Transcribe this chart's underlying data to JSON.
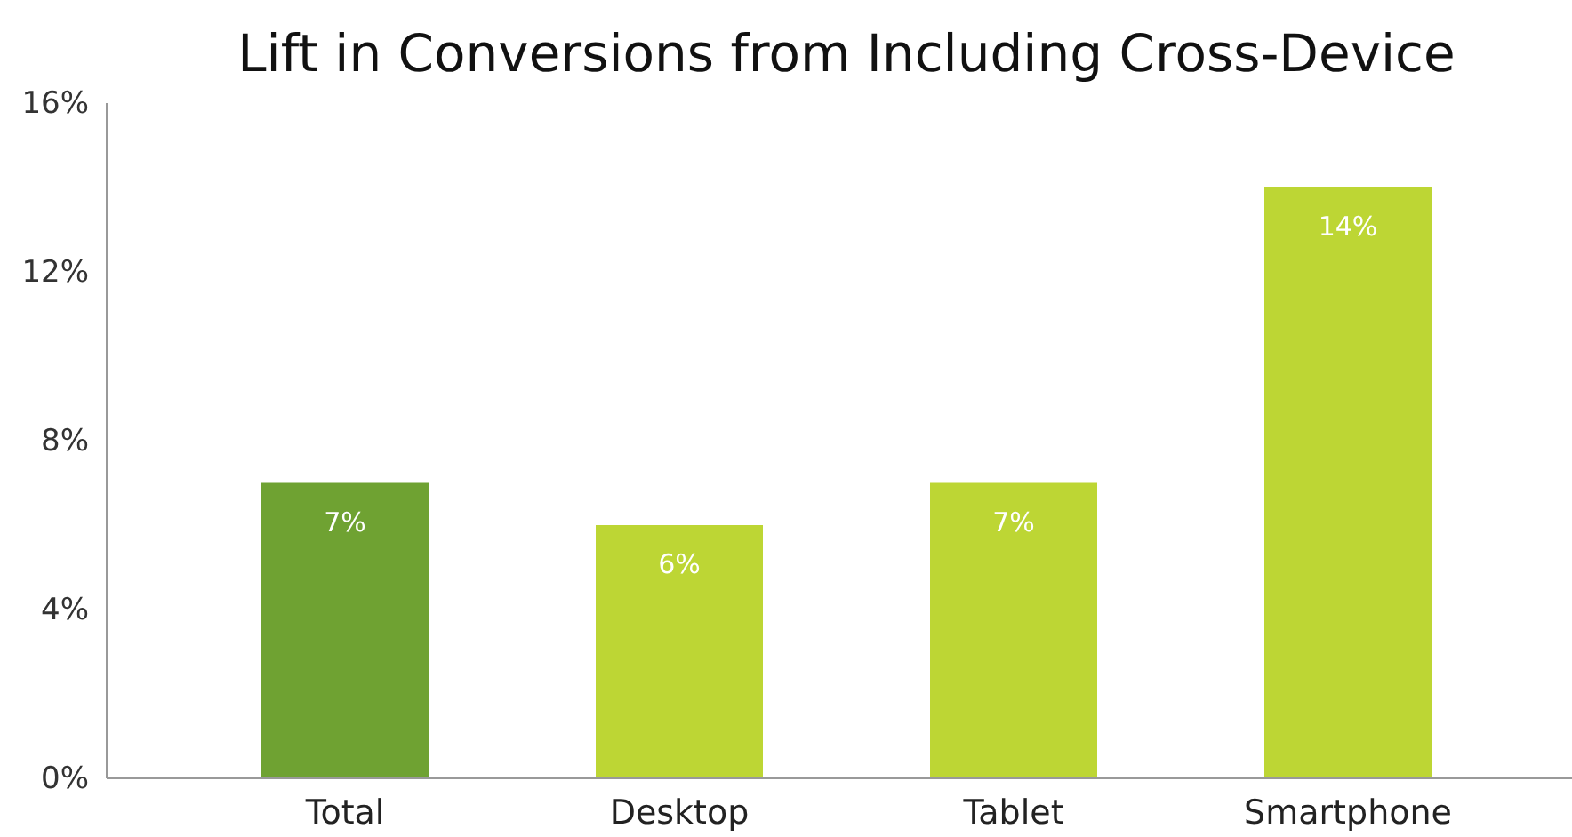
{
  "chart_data": {
    "type": "bar",
    "title": "Lift in Conversions from Including Cross-Device",
    "categories": [
      "Total",
      "Desktop",
      "Tablet",
      "Smartphone"
    ],
    "values": [
      7,
      6,
      7,
      14
    ],
    "colors": [
      "#6fa232",
      "#bdd634",
      "#bdd634",
      "#bdd634"
    ],
    "value_labels": [
      "7%",
      "6%",
      "7%",
      "14%"
    ],
    "ylim": [
      0,
      16
    ],
    "yticks": [
      {
        "value": 0,
        "label": "0%"
      },
      {
        "value": 4,
        "label": "4%"
      },
      {
        "value": 8,
        "label": "8%"
      },
      {
        "value": 12,
        "label": "12%"
      },
      {
        "value": 16,
        "label": "16%"
      }
    ],
    "grid": false
  }
}
